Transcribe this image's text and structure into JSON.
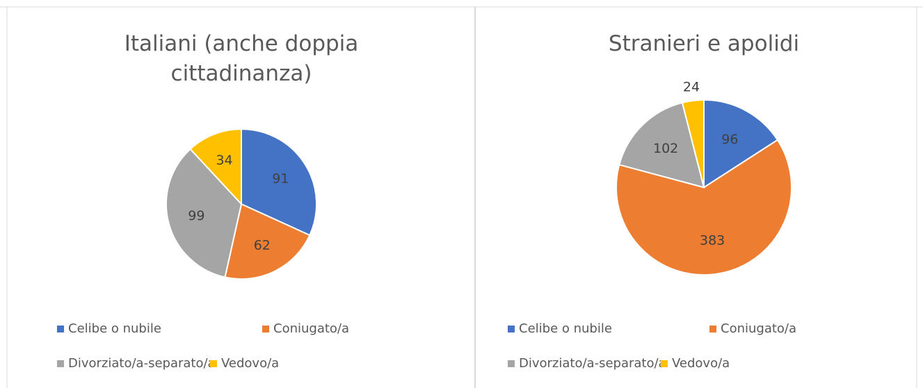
{
  "chart_data": [
    {
      "type": "pie",
      "title": "Italiani (anche doppia cittadinanza)",
      "categories": [
        "Celibe o nubile",
        "Coniugato/a",
        "Divorziato/a-separato/a",
        "Vedovo/a"
      ],
      "values": [
        91,
        62,
        99,
        34
      ],
      "colors": [
        "#4472c4",
        "#ed7d31",
        "#a5a5a5",
        "#ffc000"
      ],
      "legend": "bottom"
    },
    {
      "type": "pie",
      "title": "Stranieri e apolidi",
      "categories": [
        "Celibe o nubile",
        "Coniugato/a",
        "Divorziato/a-separato/a",
        "Vedovo/a"
      ],
      "values": [
        96,
        383,
        102,
        24
      ],
      "colors": [
        "#4472c4",
        "#ed7d31",
        "#a5a5a5",
        "#ffc000"
      ],
      "legend": "bottom"
    }
  ]
}
